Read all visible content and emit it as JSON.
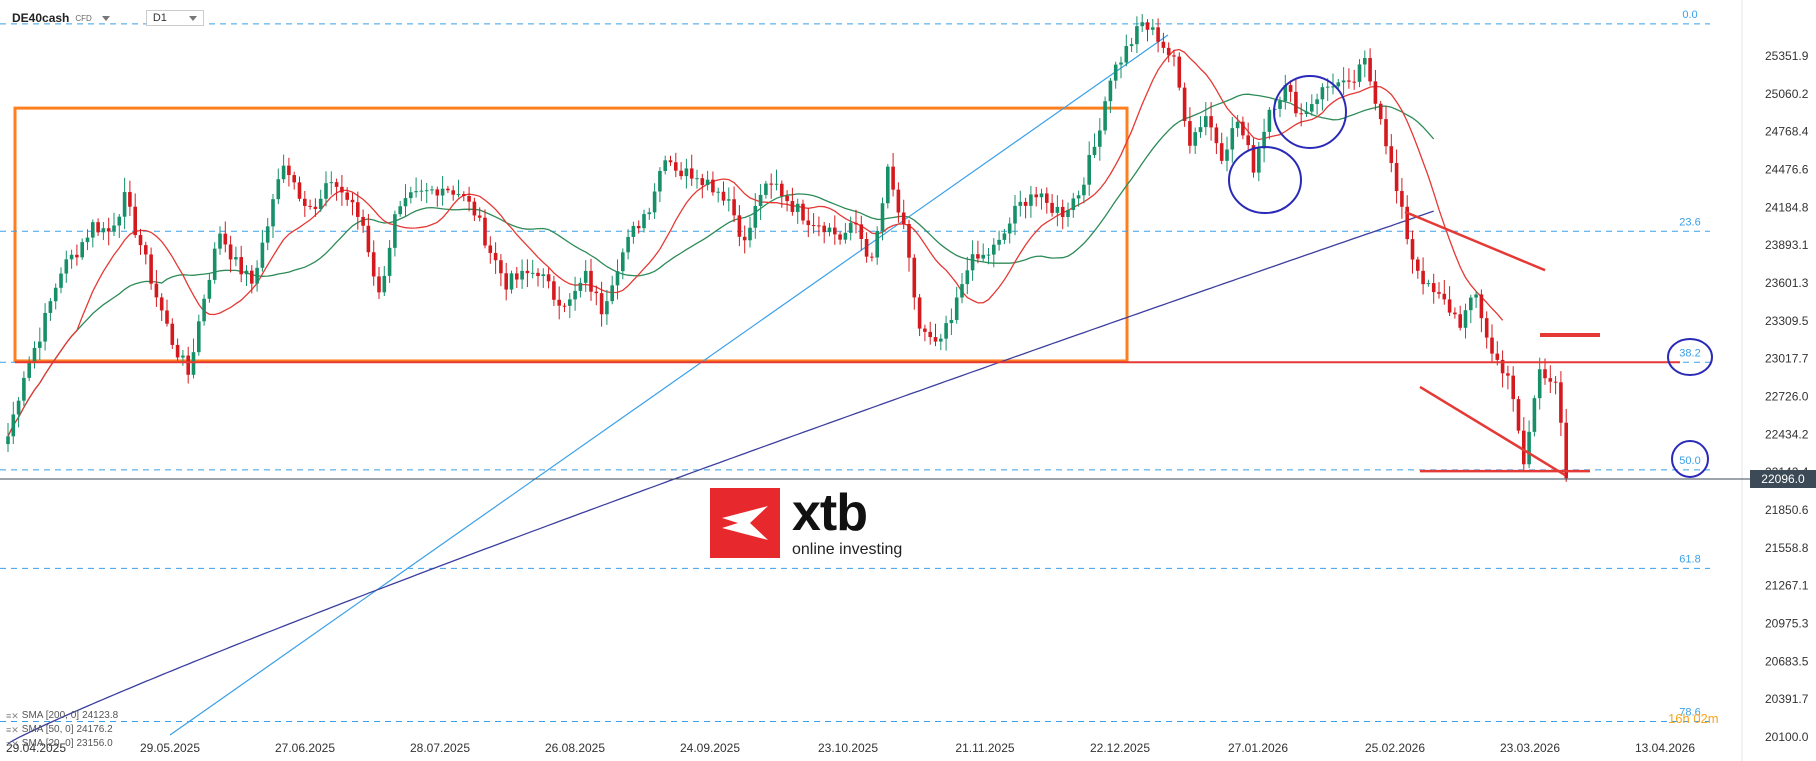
{
  "header": {
    "symbol": "DE40cash",
    "instrument_type": "CFD",
    "timeframe": "D1"
  },
  "current_price": "22096.0",
  "countdown": {
    "hours": "16h",
    "minutes": "02m"
  },
  "brand": {
    "name": "xtb",
    "tagline": "online investing",
    "color": "#e7282c"
  },
  "indicators": [
    {
      "label": "SMA [200, 0]",
      "value": "24123.8",
      "color": "#3b3f9e"
    },
    {
      "label": "SMA [50, 0]",
      "value": "24176.2",
      "color": "#2e8b57"
    },
    {
      "label": "SMA [20, 0]",
      "value": "23156.0",
      "color": "#e53935"
    }
  ],
  "chart_data": {
    "type": "candlestick",
    "y_ticks": [
      25351.9,
      25060.2,
      24768.4,
      24476.6,
      24184.8,
      23893.1,
      23601.3,
      23309.5,
      23017.7,
      22726.0,
      22434.2,
      22142.4,
      21850.6,
      21558.8,
      21267.1,
      20975.3,
      20683.5,
      20391.7,
      20100.0
    ],
    "y_tick_labels": [
      "25351.9",
      "25060.2",
      "24768.4",
      "24476.6",
      "24184.8",
      "23893.1",
      "23601.3",
      "23309.5",
      "23017.7",
      "22726.0",
      "22434.2",
      "22142.4",
      "21850.6",
      "21558.8",
      "21267.1",
      "20975.3",
      "20683.5",
      "20391.7",
      "20100.0"
    ],
    "ylim": [
      20100.0,
      25650.0
    ],
    "x_labels": [
      "29.04.2025",
      "29.05.2025",
      "27.06.2025",
      "28.07.2025",
      "26.08.2025",
      "24.09.2025",
      "23.10.2025",
      "21.11.2025",
      "22.12.2025",
      "27.01.2026",
      "25.02.2026",
      "23.03.2026",
      "13.04.2026"
    ],
    "fibonacci": [
      {
        "level": "0.0",
        "price": 25600
      },
      {
        "level": "23.6",
        "price": 24000
      },
      {
        "level": "38.2",
        "price": 22990
      },
      {
        "level": "50.0",
        "price": 22160
      },
      {
        "level": "61.8",
        "price": 21400
      },
      {
        "level": "78.6",
        "price": 20220
      }
    ],
    "current_price": 22096.0,
    "price_keypoints": [
      [
        0,
        22420
      ],
      [
        3,
        22900
      ],
      [
        6,
        23200
      ],
      [
        10,
        23700
      ],
      [
        13,
        23850
      ],
      [
        16,
        24050
      ],
      [
        19,
        24000
      ],
      [
        22,
        24250
      ],
      [
        25,
        23900
      ],
      [
        28,
        23500
      ],
      [
        31,
        23150
      ],
      [
        34,
        22900
      ],
      [
        37,
        23500
      ],
      [
        40,
        24000
      ],
      [
        43,
        23750
      ],
      [
        46,
        23600
      ],
      [
        49,
        24050
      ],
      [
        52,
        24550
      ],
      [
        55,
        24300
      ],
      [
        58,
        24150
      ],
      [
        61,
        24400
      ],
      [
        64,
        24250
      ],
      [
        67,
        24050
      ],
      [
        70,
        23500
      ],
      [
        73,
        24100
      ],
      [
        76,
        24250
      ],
      [
        79,
        24300
      ],
      [
        82,
        24350
      ],
      [
        85,
        24300
      ],
      [
        88,
        24150
      ],
      [
        91,
        23850
      ],
      [
        94,
        23600
      ],
      [
        97,
        23650
      ],
      [
        100,
        23700
      ],
      [
        103,
        23500
      ],
      [
        106,
        23450
      ],
      [
        109,
        23650
      ],
      [
        112,
        23400
      ],
      [
        115,
        23750
      ],
      [
        118,
        24000
      ],
      [
        121,
        24200
      ],
      [
        124,
        24600
      ],
      [
        127,
        24450
      ],
      [
        130,
        24450
      ],
      [
        133,
        24350
      ],
      [
        136,
        24250
      ],
      [
        139,
        23900
      ],
      [
        142,
        24300
      ],
      [
        145,
        24350
      ],
      [
        148,
        24200
      ],
      [
        151,
        24100
      ],
      [
        154,
        24050
      ],
      [
        157,
        23950
      ],
      [
        160,
        24050
      ],
      [
        163,
        23750
      ],
      [
        166,
        24450
      ],
      [
        169,
        24000
      ],
      [
        172,
        23250
      ],
      [
        175,
        23100
      ],
      [
        178,
        23300
      ],
      [
        181,
        23750
      ],
      [
        184,
        23800
      ],
      [
        187,
        23900
      ],
      [
        190,
        24150
      ],
      [
        193,
        24300
      ],
      [
        196,
        24200
      ],
      [
        199,
        24150
      ],
      [
        202,
        24300
      ],
      [
        205,
        24650
      ],
      [
        208,
        25200
      ],
      [
        211,
        25400
      ],
      [
        214,
        25600
      ],
      [
        217,
        25500
      ],
      [
        220,
        25300
      ],
      [
        223,
        24700
      ],
      [
        226,
        24900
      ],
      [
        229,
        24600
      ],
      [
        232,
        24850
      ],
      [
        235,
        24500
      ],
      [
        238,
        24950
      ],
      [
        241,
        25100
      ],
      [
        244,
        24900
      ],
      [
        247,
        25050
      ],
      [
        250,
        25150
      ],
      [
        253,
        25100
      ],
      [
        256,
        25300
      ],
      [
        259,
        24900
      ],
      [
        262,
        24300
      ],
      [
        265,
        23800
      ],
      [
        268,
        23550
      ],
      [
        271,
        23450
      ],
      [
        274,
        23300
      ],
      [
        277,
        23500
      ],
      [
        280,
        23050
      ],
      [
        283,
        22900
      ],
      [
        286,
        22200
      ],
      [
        289,
        22950
      ],
      [
        292,
        22850
      ],
      [
        294,
        22096
      ]
    ]
  }
}
